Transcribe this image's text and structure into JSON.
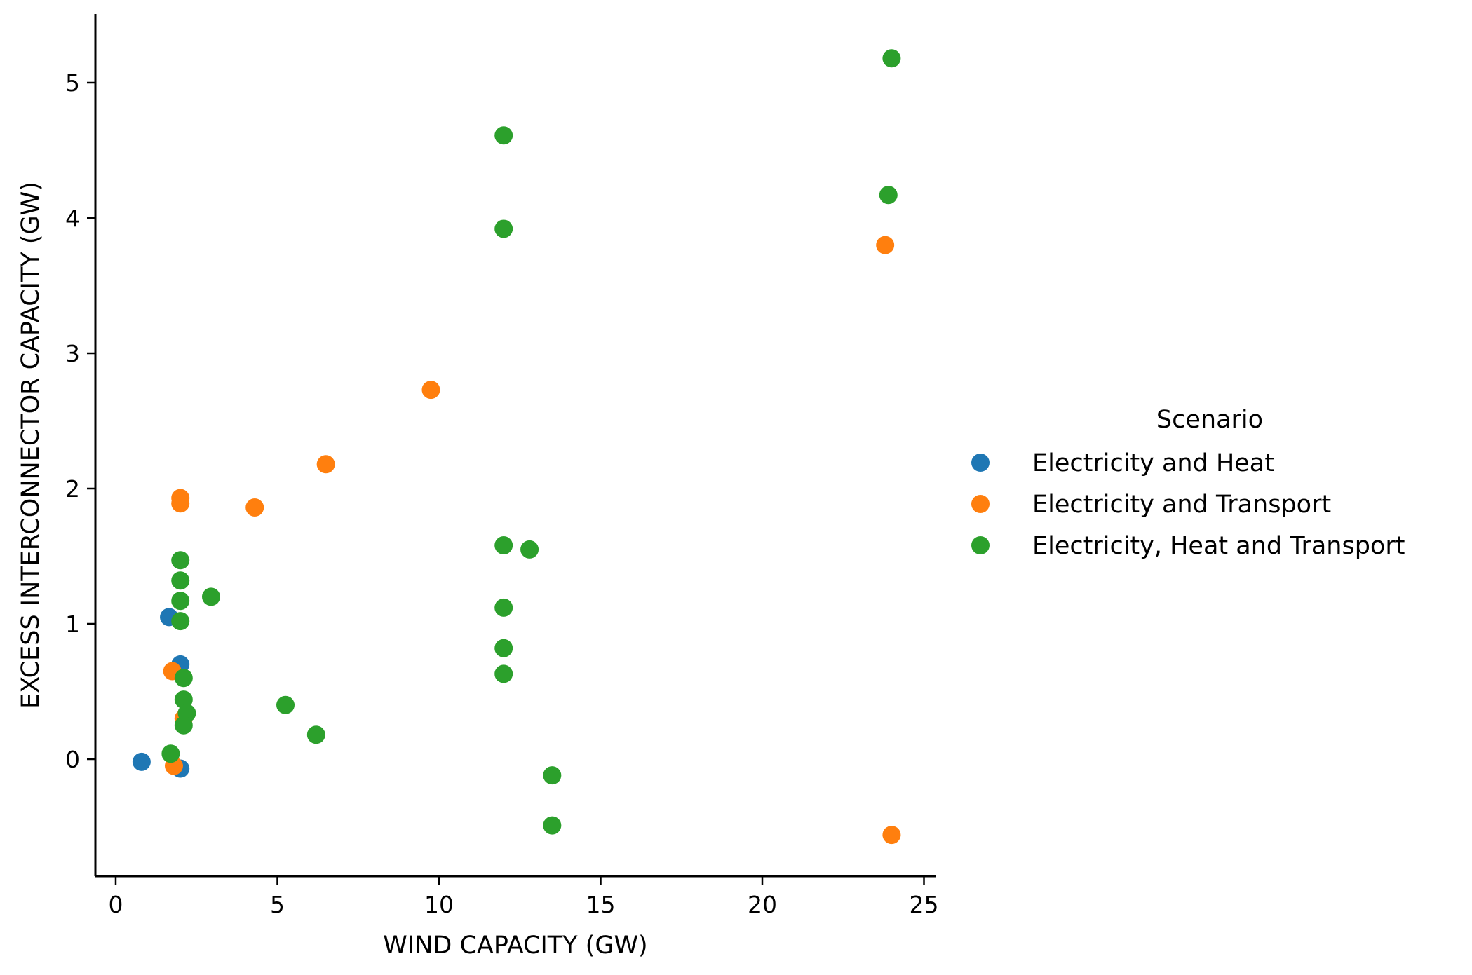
{
  "chart_data": {
    "type": "scatter",
    "title": "",
    "xlabel": "WIND CAPACITY (GW)",
    "ylabel": "EXCESS INTERCONNECTOR CAPACITY (GW)",
    "xlim": [
      -0.6,
      25.5
    ],
    "ylim": [
      -0.85,
      5.53
    ],
    "xticks": [
      0,
      5,
      10,
      15,
      20,
      25
    ],
    "yticks": [
      0,
      1,
      2,
      3,
      4,
      5
    ],
    "grid": false,
    "legend": {
      "title": "Scenario",
      "placement": "right"
    },
    "series": [
      {
        "name": "Electricity and Heat",
        "color": "#1f77b4",
        "points": [
          {
            "x": 0.8,
            "y": -0.02
          },
          {
            "x": 1.65,
            "y": 1.05
          },
          {
            "x": 2.0,
            "y": 0.7
          },
          {
            "x": 2.0,
            "y": -0.07
          }
        ]
      },
      {
        "name": "Electricity and Transport",
        "color": "#ff7f0e",
        "points": [
          {
            "x": 1.75,
            "y": 0.65
          },
          {
            "x": 1.8,
            "y": -0.05
          },
          {
            "x": 2.0,
            "y": 1.93
          },
          {
            "x": 2.0,
            "y": 1.89
          },
          {
            "x": 2.1,
            "y": 0.3
          },
          {
            "x": 4.3,
            "y": 1.86
          },
          {
            "x": 6.5,
            "y": 2.18
          },
          {
            "x": 9.75,
            "y": 2.73
          },
          {
            "x": 23.8,
            "y": 3.8
          },
          {
            "x": 24.0,
            "y": -0.56
          }
        ]
      },
      {
        "name": "Electricity, Heat and Transport",
        "color": "#2ca02c",
        "points": [
          {
            "x": 1.7,
            "y": 0.04
          },
          {
            "x": 2.0,
            "y": 1.47
          },
          {
            "x": 2.0,
            "y": 1.32
          },
          {
            "x": 2.0,
            "y": 1.17
          },
          {
            "x": 2.0,
            "y": 1.02
          },
          {
            "x": 2.1,
            "y": 0.6
          },
          {
            "x": 2.1,
            "y": 0.44
          },
          {
            "x": 2.2,
            "y": 0.34
          },
          {
            "x": 2.1,
            "y": 0.25
          },
          {
            "x": 2.95,
            "y": 1.2
          },
          {
            "x": 5.25,
            "y": 0.4
          },
          {
            "x": 6.2,
            "y": 0.18
          },
          {
            "x": 12.0,
            "y": 4.61
          },
          {
            "x": 12.0,
            "y": 3.92
          },
          {
            "x": 12.0,
            "y": 1.58
          },
          {
            "x": 12.0,
            "y": 1.12
          },
          {
            "x": 12.0,
            "y": 0.82
          },
          {
            "x": 12.0,
            "y": 0.63
          },
          {
            "x": 12.8,
            "y": 1.55
          },
          {
            "x": 13.5,
            "y": -0.12
          },
          {
            "x": 13.5,
            "y": -0.49
          },
          {
            "x": 23.9,
            "y": 4.17
          },
          {
            "x": 24.0,
            "y": 5.18
          }
        ]
      }
    ]
  }
}
